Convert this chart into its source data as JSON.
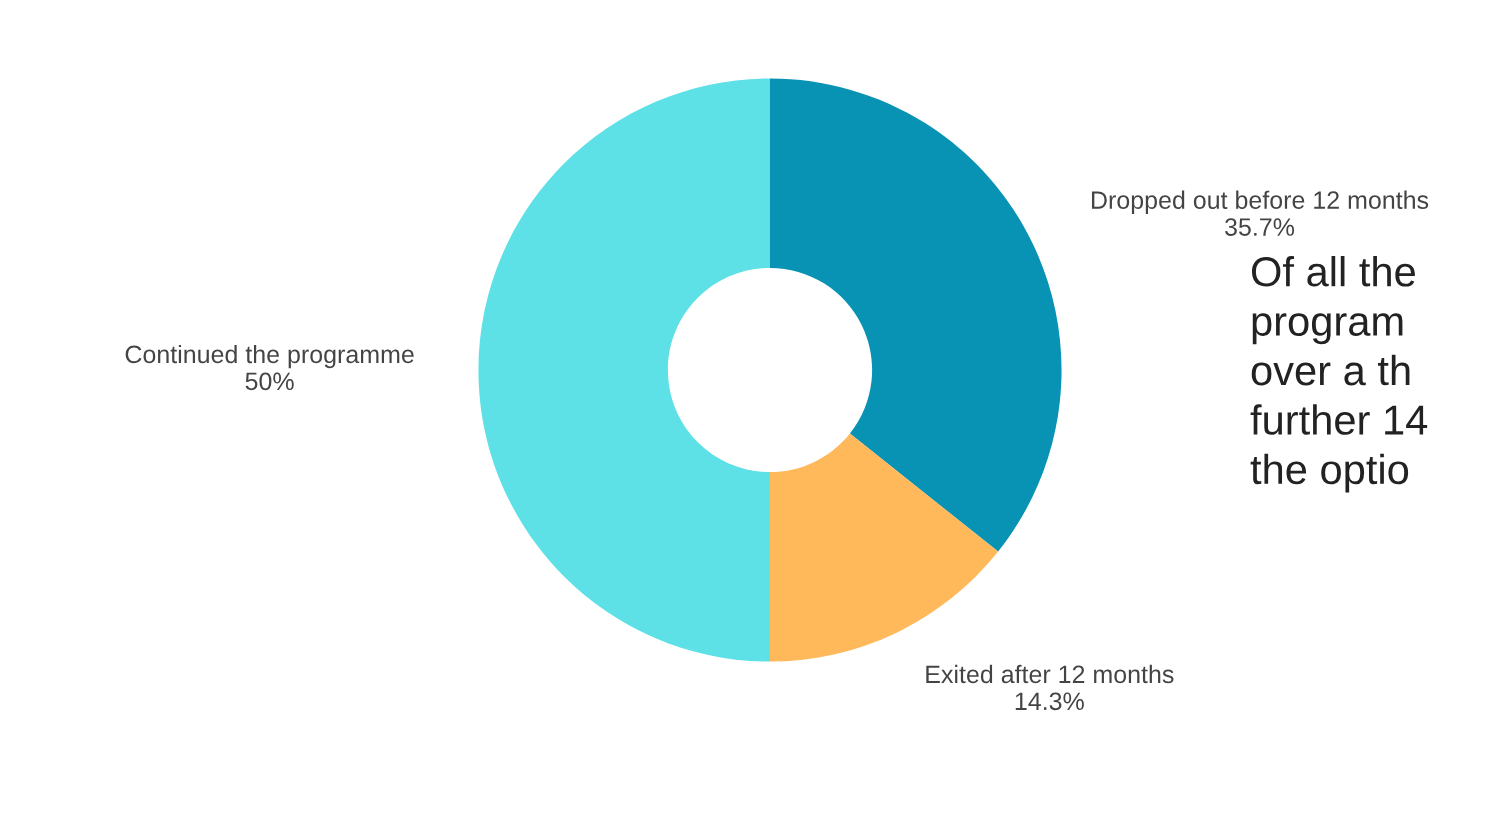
{
  "chart_data": {
    "type": "donut",
    "categories": [
      "Dropped out before 12 months",
      "Exited after 12 months",
      "Continued the programme"
    ],
    "values": [
      35.7,
      14.3,
      50
    ],
    "value_labels": [
      "35.7%",
      "14.3%",
      "50%"
    ],
    "colors": [
      "#0893b4",
      "#ffb95b",
      "#5de0e6"
    ],
    "annotations": [
      "Of all the\nprogram\nover a th\nfurther 14\nthe optio"
    ]
  }
}
